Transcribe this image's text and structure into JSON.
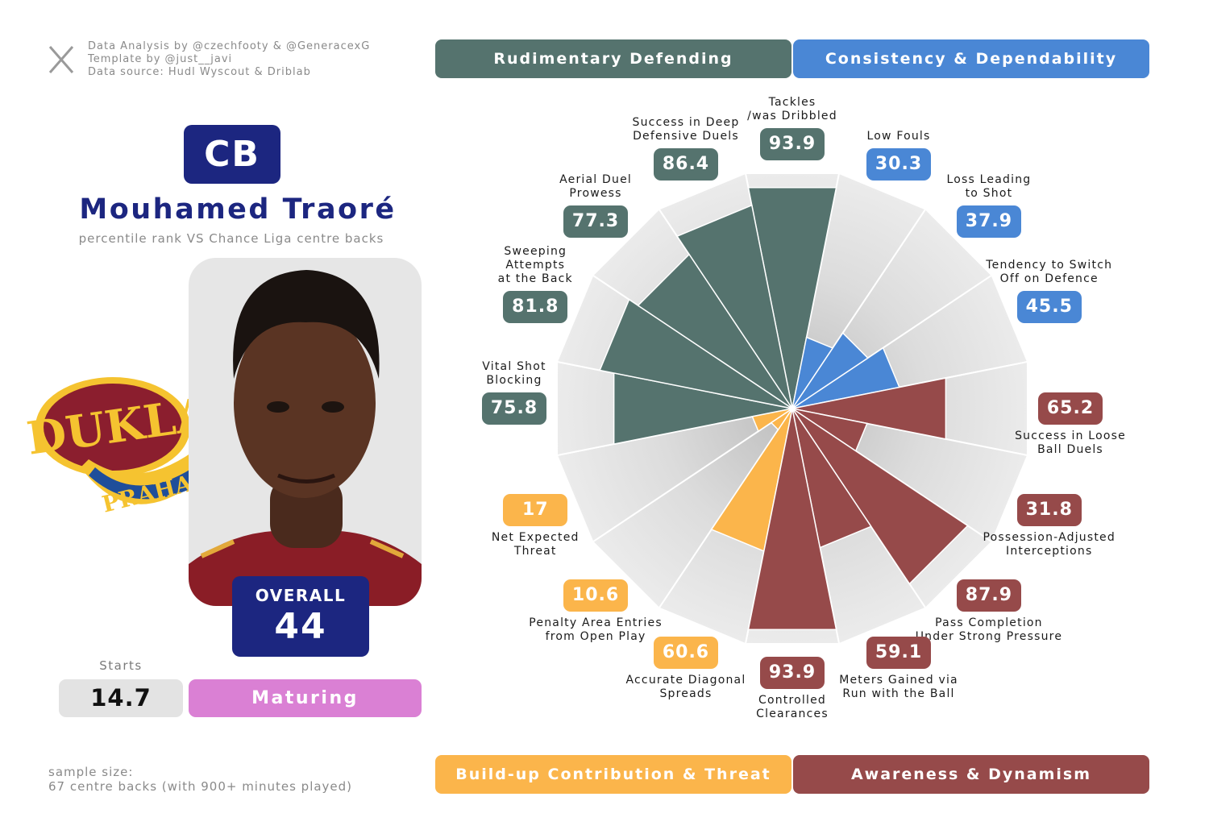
{
  "header": {
    "credits": [
      "Data Analysis by @czechfooty & @GeneracexG",
      "Template by @just__javi",
      "Data source: Hudl Wyscout & Driblab"
    ]
  },
  "player": {
    "position": "CB",
    "name": "Mouhamed Traoré",
    "subtitle": "percentile rank VS Chance Liga centre backs",
    "overall_label": "OVERALL",
    "overall": 44,
    "starts_label": "Starts",
    "starts": 14.7,
    "status": "Maturing"
  },
  "club_logo": {
    "top": "DUKLA",
    "bottom": "PRAHA"
  },
  "footer": {
    "sample": [
      "sample size:",
      "67 centre backs (with 900+ minutes played)"
    ]
  },
  "chart_data": {
    "type": "polar_bar",
    "categories": [
      "Tackles\n/was Dribbled",
      "Low Fouls",
      "Loss Leading\nto Shot",
      "Tendency to Switch\nOff on Defence",
      "Success in Loose\nBall Duels",
      "Possession-Adjusted\nInterceptions",
      "Pass Completion\nUnder Strong Pressure",
      "Meters Gained via\nRun with the Ball",
      "Controlled\nClearances",
      "Accurate Diagonal\nSpreads",
      "Penalty Area Entries\nfrom Open Play",
      "Net Expected\nThreat",
      "Vital Shot\nBlocking",
      "Sweeping\nAttempts\nat the Back",
      "Aerial Duel\nProwess",
      "Success in Deep\nDefensive Duels"
    ],
    "rlim": [
      0,
      100
    ],
    "series": [
      {
        "name": "Rudimentary Defending",
        "color": "#55736e",
        "values": [
          93.9,
          null,
          null,
          null,
          null,
          null,
          null,
          null,
          null,
          null,
          null,
          null,
          75.8,
          81.8,
          77.3,
          86.4
        ]
      },
      {
        "name": "Consistency & Dependability",
        "color": "#4a87d5",
        "values": [
          null,
          30.3,
          37.9,
          45.5,
          null,
          null,
          null,
          null,
          null,
          null,
          null,
          null,
          null,
          null,
          null,
          null
        ]
      },
      {
        "name": "Build-up Contribution & Threat",
        "color": "#fbb54b",
        "values": [
          null,
          null,
          null,
          null,
          null,
          null,
          null,
          null,
          null,
          60.6,
          10.6,
          17,
          null,
          null,
          null,
          null
        ]
      },
      {
        "name": "Awareness & Dynamism",
        "color": "#964a4a",
        "values": [
          null,
          null,
          null,
          null,
          65.2,
          31.8,
          87.9,
          59.1,
          93.9,
          null,
          null,
          null,
          null,
          null,
          null,
          null
        ]
      }
    ]
  }
}
